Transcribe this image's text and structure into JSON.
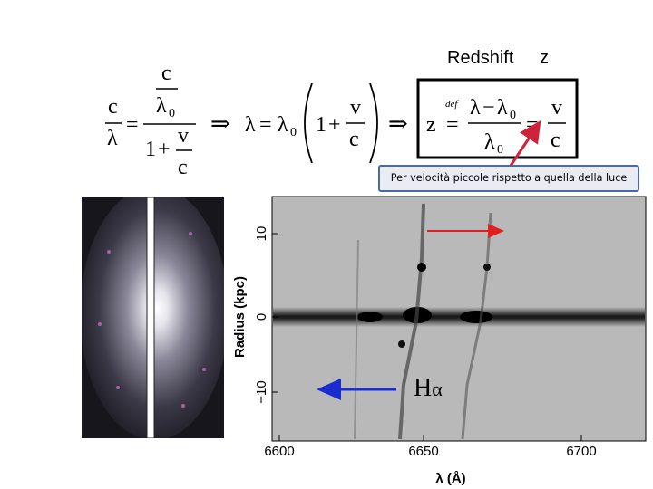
{
  "header": {
    "redshift_label": "Redshift",
    "z_symbol": "z"
  },
  "formula": {
    "c": "c",
    "lambda": "λ",
    "lambda0": "λ",
    "sub0": "0",
    "v": "v",
    "one": "1",
    "plus": "+",
    "equals": "=",
    "implies": "⇒",
    "minus": "−",
    "def": "def",
    "z": "z"
  },
  "note": {
    "text": "Per velocità piccole rispetto a quella della luce"
  },
  "spectrum": {
    "y_axis_label": "Radius (kpc)",
    "y_ticks": [
      "10",
      "0",
      "−10"
    ],
    "x_ticks": [
      "6600",
      "6650",
      "6700"
    ],
    "x_axis_label": "λ (Å)",
    "line_label_main": "H",
    "line_label_sub": "α"
  },
  "colors": {
    "note_border": "#4a6aa0",
    "note_fill": "#e9ecf3",
    "arrow_red": "#e02020",
    "arrow_blue": "#1a2bd0",
    "pointer_arrow": "#d0223a"
  }
}
